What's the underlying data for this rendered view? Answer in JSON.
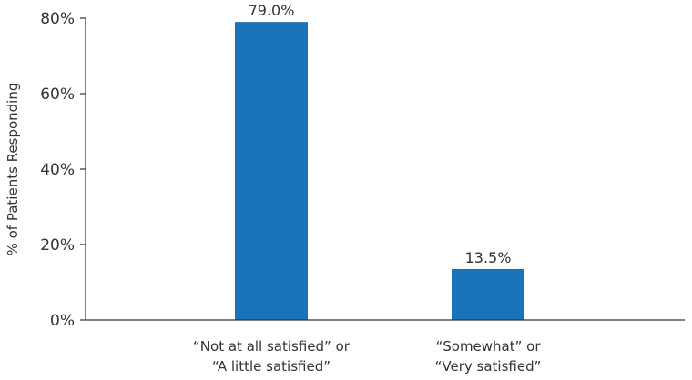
{
  "chart_data": {
    "type": "bar",
    "title": "",
    "xlabel": "",
    "ylabel": "% of Patients Responding",
    "ylim": [
      0,
      80
    ],
    "yticks": [
      0,
      20,
      40,
      60,
      80
    ],
    "ytick_labels": [
      "0%",
      "20%",
      "40%",
      "60%",
      "80%"
    ],
    "grid": false,
    "categories": [
      [
        "“Not at all satisfied” or",
        "“A little satisfied”"
      ],
      [
        "“Somewhat” or",
        "“Very satisfied”"
      ]
    ],
    "values": [
      79.0,
      13.5
    ],
    "data_labels": [
      "79.0%",
      "13.5%"
    ],
    "bar_color": "#1a73b9",
    "axis_color": "#333333"
  }
}
